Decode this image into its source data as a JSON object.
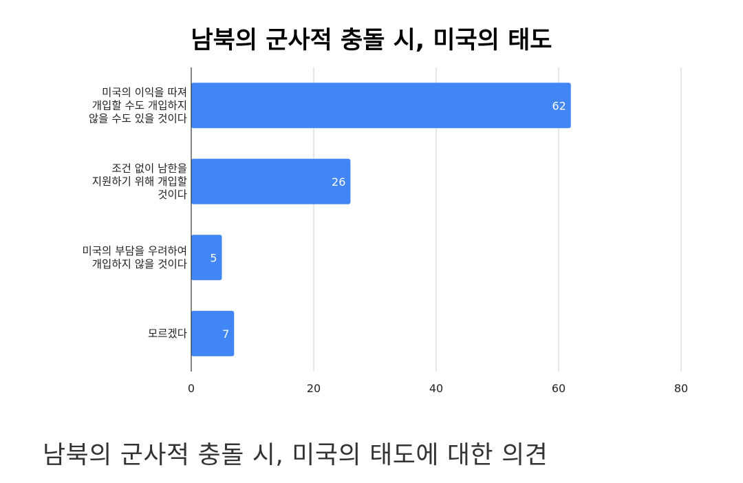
{
  "chart_data": {
    "type": "bar",
    "orientation": "horizontal",
    "title": "남북의 군사적 충돌 시, 미국의 태도",
    "categories": [
      [
        "미국의 이익을 따져",
        "개입할 수도 개입하지",
        "않을 수도 있을 것이다"
      ],
      [
        "조건 없이 남한을",
        "지원하기 위해 개입할",
        "것이다"
      ],
      [
        "미국의 부담을 우려하여",
        "개입하지 않을 것이다"
      ],
      [
        "모르겠다"
      ]
    ],
    "values": [
      62,
      26,
      5,
      7
    ],
    "data_labels": [
      "62",
      "26",
      "5",
      "7"
    ],
    "xlim": [
      0,
      80
    ],
    "xticks": [
      0,
      20,
      40,
      60,
      80
    ],
    "grid": true,
    "bar_color": "#4285f4",
    "xlabel": "",
    "ylabel": ""
  },
  "caption": "남북의 군사적 충돌 시, 미국의 태도에 대한 의견"
}
